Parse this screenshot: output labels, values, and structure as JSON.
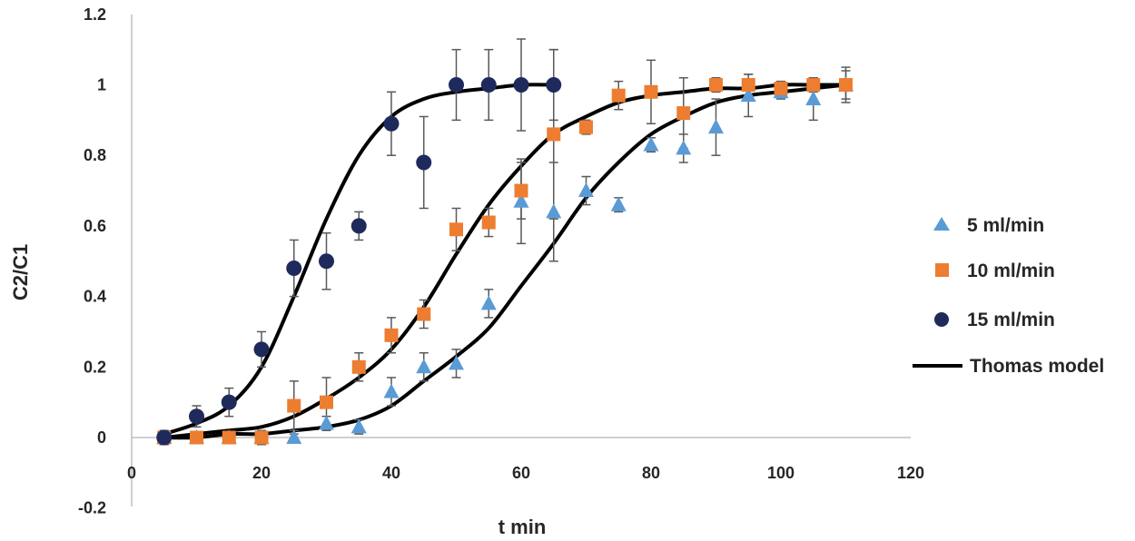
{
  "chart_data": {
    "type": "scatter",
    "title": "",
    "xlabel": "t min",
    "ylabel": "C2/C1",
    "xlim": [
      0,
      120
    ],
    "ylim": [
      -0.2,
      1.2
    ],
    "xticks": [
      0,
      20,
      40,
      60,
      80,
      100,
      120
    ],
    "yticks": [
      -0.2,
      0,
      0.2,
      0.4,
      0.6,
      0.8,
      1,
      1.2
    ],
    "xtick_labels": [
      "0",
      "20",
      "40",
      "60",
      "80",
      "100",
      "120"
    ],
    "ytick_labels": [
      "-0.2",
      "0",
      "0.2",
      "0.4",
      "0.6",
      "0.8",
      "1",
      "1.2"
    ],
    "grid": false,
    "legend_position": "right",
    "series": [
      {
        "name": "5 ml/min",
        "marker": "triangle",
        "color": "#5b9bd5",
        "x": [
          5,
          10,
          15,
          20,
          25,
          30,
          35,
          40,
          45,
          50,
          55,
          60,
          65,
          70,
          75,
          80,
          85,
          90,
          95,
          100,
          105,
          110
        ],
        "y": [
          0,
          0,
          0,
          0,
          0,
          0.04,
          0.03,
          0.13,
          0.2,
          0.21,
          0.38,
          0.67,
          0.64,
          0.7,
          0.66,
          0.83,
          0.82,
          0.88,
          0.97,
          0.98,
          0.96,
          1.0
        ],
        "err": [
          0.02,
          0.01,
          0.01,
          0.01,
          0.01,
          0.02,
          0.02,
          0.04,
          0.04,
          0.04,
          0.04,
          0.12,
          0.14,
          0.04,
          0.02,
          0.02,
          0.04,
          0.08,
          0.06,
          0.02,
          0.06,
          0.04
        ]
      },
      {
        "name": "10 ml/min",
        "marker": "square",
        "color": "#ed7d31",
        "x": [
          5,
          10,
          15,
          20,
          25,
          30,
          35,
          40,
          45,
          50,
          55,
          60,
          65,
          70,
          75,
          80,
          85,
          90,
          95,
          100,
          105,
          110
        ],
        "y": [
          0,
          0,
          0,
          0,
          0.09,
          0.1,
          0.2,
          0.29,
          0.35,
          0.59,
          0.61,
          0.7,
          0.86,
          0.88,
          0.97,
          0.98,
          0.92,
          1.0,
          1.0,
          0.99,
          1.0,
          1.0
        ],
        "err": [
          0.01,
          0.01,
          0.01,
          0.02,
          0.07,
          0.07,
          0.04,
          0.05,
          0.04,
          0.06,
          0.04,
          0.08,
          0.24,
          0.02,
          0.04,
          0.09,
          0.1,
          0.02,
          0.03,
          0.02,
          0.02,
          0.05
        ]
      },
      {
        "name": "15 ml/min",
        "marker": "circle",
        "color": "#1f2a5c",
        "x": [
          5,
          10,
          15,
          20,
          25,
          30,
          35,
          40,
          45,
          50,
          55,
          60,
          65
        ],
        "y": [
          0,
          0.06,
          0.1,
          0.25,
          0.48,
          0.5,
          0.6,
          0.89,
          0.78,
          1.0,
          1.0,
          1.0,
          1.0
        ],
        "err": [
          0.02,
          0.03,
          0.04,
          0.05,
          0.08,
          0.08,
          0.04,
          0.09,
          0.13,
          0.1,
          0.1,
          0.13,
          0.1
        ]
      }
    ],
    "model_curves": {
      "name": "Thomas model",
      "color": "#000000",
      "curves": [
        {
          "for": "15 ml/min",
          "x": [
            5,
            10,
            15,
            20,
            25,
            30,
            35,
            40,
            45,
            50,
            55,
            60,
            65
          ],
          "y": [
            0.01,
            0.04,
            0.09,
            0.2,
            0.4,
            0.62,
            0.8,
            0.91,
            0.96,
            0.98,
            0.99,
            1.0,
            1.0
          ]
        },
        {
          "for": "10 ml/min",
          "x": [
            5,
            10,
            15,
            20,
            25,
            30,
            35,
            40,
            45,
            50,
            55,
            60,
            65,
            70,
            75,
            80,
            85,
            90,
            95,
            100,
            105,
            110
          ],
          "y": [
            0,
            0.01,
            0.02,
            0.03,
            0.06,
            0.11,
            0.17,
            0.25,
            0.37,
            0.52,
            0.66,
            0.77,
            0.86,
            0.91,
            0.95,
            0.97,
            0.98,
            0.99,
            0.99,
            1.0,
            1.0,
            1.0
          ]
        },
        {
          "for": "5 ml/min",
          "x": [
            5,
            10,
            15,
            20,
            25,
            30,
            35,
            40,
            45,
            50,
            55,
            60,
            65,
            70,
            75,
            80,
            85,
            90,
            95,
            100,
            105,
            110
          ],
          "y": [
            0,
            0,
            0.01,
            0.01,
            0.02,
            0.03,
            0.05,
            0.09,
            0.16,
            0.23,
            0.31,
            0.43,
            0.55,
            0.68,
            0.78,
            0.86,
            0.91,
            0.95,
            0.97,
            0.98,
            0.99,
            1.0
          ]
        }
      ]
    }
  }
}
